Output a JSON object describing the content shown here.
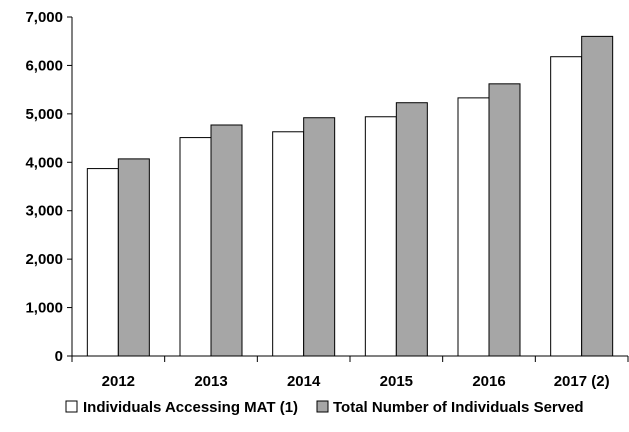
{
  "chart_data": {
    "type": "bar",
    "categories": [
      "2012",
      "2013",
      "2014",
      "2015",
      "2016",
      "2017 (2)"
    ],
    "series": [
      {
        "name": "Individuals Accessing MAT (1)",
        "color": "#ffffff",
        "values": [
          3870,
          4510,
          4630,
          4940,
          5330,
          6180
        ]
      },
      {
        "name": "Total Number of Individuals Served",
        "color": "#a6a6a6",
        "values": [
          4070,
          4770,
          4920,
          5230,
          5620,
          6600
        ]
      }
    ],
    "ylim": [
      0,
      7000
    ],
    "yticks": [
      0,
      1000,
      2000,
      3000,
      4000,
      5000,
      6000,
      7000
    ],
    "ytick_labels": [
      "0",
      "1,000",
      "2,000",
      "3,000",
      "4,000",
      "5,000",
      "6,000",
      "7,000"
    ],
    "grid": false,
    "legend_position": "bottom"
  }
}
